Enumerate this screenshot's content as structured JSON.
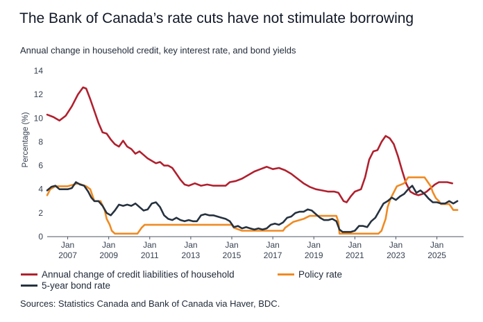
{
  "title": "The Bank of Canada’s rate cuts have not stimulate borrowing",
  "subtitle": "Annual change in household credit, key interest rate, and bond yields",
  "source": "Sources: Statistics Canada and Bank of Canada via Haver, BDC.",
  "colors": {
    "credit": "#b0202e",
    "policy": "#ef8a22",
    "bond": "#26323f",
    "grid": "#e5e7eb",
    "axis": "#4b5563"
  },
  "chart_data": {
    "type": "line",
    "xlabel": "",
    "ylabel": "Percentage (%)",
    "ylim": [
      0,
      14
    ],
    "xlim": [
      2006.0,
      2026.3
    ],
    "yticks": [
      0,
      2,
      4,
      6,
      8,
      10,
      12,
      14
    ],
    "xticks": [
      {
        "x": 2007.0,
        "top": "Jan",
        "bottom": "2007"
      },
      {
        "x": 2009.0,
        "top": "Jan",
        "bottom": "2009"
      },
      {
        "x": 2011.0,
        "top": "Jan",
        "bottom": "2011"
      },
      {
        "x": 2013.0,
        "top": "Jan",
        "bottom": "2013"
      },
      {
        "x": 2015.0,
        "top": "Jan",
        "bottom": "2015"
      },
      {
        "x": 2017.0,
        "top": "Jan",
        "bottom": "2017"
      },
      {
        "x": 2019.0,
        "top": "Jan",
        "bottom": "2019"
      },
      {
        "x": 2021.0,
        "top": "Jan",
        "bottom": "2021"
      },
      {
        "x": 2023.0,
        "top": "Jan",
        "bottom": "2023"
      },
      {
        "x": 2025.0,
        "top": "Jan",
        "bottom": "2025"
      }
    ],
    "legend_position": "bottom",
    "grid": false,
    "series": [
      {
        "name": "Annual change of credit liabilities of household",
        "key": "credit",
        "points": [
          [
            2006.0,
            10.3
          ],
          [
            2006.3,
            10.1
          ],
          [
            2006.6,
            9.8
          ],
          [
            2006.9,
            10.2
          ],
          [
            2007.2,
            11.0
          ],
          [
            2007.5,
            12.0
          ],
          [
            2007.75,
            12.6
          ],
          [
            2007.9,
            12.5
          ],
          [
            2008.1,
            11.6
          ],
          [
            2008.3,
            10.6
          ],
          [
            2008.5,
            9.6
          ],
          [
            2008.7,
            8.8
          ],
          [
            2008.9,
            8.7
          ],
          [
            2009.1,
            8.2
          ],
          [
            2009.3,
            7.8
          ],
          [
            2009.5,
            7.6
          ],
          [
            2009.7,
            8.1
          ],
          [
            2009.9,
            7.6
          ],
          [
            2010.1,
            7.4
          ],
          [
            2010.3,
            7.0
          ],
          [
            2010.5,
            7.2
          ],
          [
            2010.7,
            6.9
          ],
          [
            2010.9,
            6.6
          ],
          [
            2011.1,
            6.4
          ],
          [
            2011.3,
            6.2
          ],
          [
            2011.5,
            6.3
          ],
          [
            2011.7,
            6.0
          ],
          [
            2011.9,
            6.0
          ],
          [
            2012.1,
            5.8
          ],
          [
            2012.3,
            5.3
          ],
          [
            2012.5,
            4.8
          ],
          [
            2012.7,
            4.4
          ],
          [
            2012.9,
            4.3
          ],
          [
            2013.2,
            4.5
          ],
          [
            2013.5,
            4.3
          ],
          [
            2013.8,
            4.4
          ],
          [
            2014.1,
            4.3
          ],
          [
            2014.4,
            4.3
          ],
          [
            2014.7,
            4.3
          ],
          [
            2014.9,
            4.6
          ],
          [
            2015.2,
            4.7
          ],
          [
            2015.5,
            4.9
          ],
          [
            2015.8,
            5.2
          ],
          [
            2016.1,
            5.5
          ],
          [
            2016.4,
            5.7
          ],
          [
            2016.7,
            5.9
          ],
          [
            2017.0,
            5.7
          ],
          [
            2017.3,
            5.8
          ],
          [
            2017.6,
            5.6
          ],
          [
            2017.9,
            5.3
          ],
          [
            2018.2,
            4.9
          ],
          [
            2018.5,
            4.5
          ],
          [
            2018.8,
            4.2
          ],
          [
            2019.1,
            4.0
          ],
          [
            2019.4,
            3.9
          ],
          [
            2019.7,
            3.8
          ],
          [
            2020.0,
            3.8
          ],
          [
            2020.2,
            3.7
          ],
          [
            2020.45,
            3.0
          ],
          [
            2020.6,
            2.9
          ],
          [
            2020.8,
            3.4
          ],
          [
            2021.0,
            3.8
          ],
          [
            2021.3,
            4.0
          ],
          [
            2021.5,
            5.0
          ],
          [
            2021.7,
            6.5
          ],
          [
            2021.9,
            7.2
          ],
          [
            2022.1,
            7.3
          ],
          [
            2022.3,
            8.0
          ],
          [
            2022.5,
            8.5
          ],
          [
            2022.7,
            8.3
          ],
          [
            2022.9,
            7.8
          ],
          [
            2023.1,
            6.8
          ],
          [
            2023.3,
            5.6
          ],
          [
            2023.5,
            4.5
          ],
          [
            2023.7,
            3.8
          ],
          [
            2023.9,
            3.6
          ],
          [
            2024.1,
            3.5
          ],
          [
            2024.3,
            3.6
          ],
          [
            2024.5,
            3.8
          ],
          [
            2024.7,
            4.1
          ],
          [
            2024.9,
            4.4
          ],
          [
            2025.1,
            4.6
          ],
          [
            2025.3,
            4.6
          ],
          [
            2025.5,
            4.6
          ],
          [
            2025.75,
            4.5
          ]
        ]
      },
      {
        "name": "Policy rate",
        "key": "policy",
        "points": [
          [
            2006.0,
            3.5
          ],
          [
            2006.15,
            4.0
          ],
          [
            2006.4,
            4.25
          ],
          [
            2007.0,
            4.25
          ],
          [
            2007.5,
            4.5
          ],
          [
            2007.9,
            4.25
          ],
          [
            2008.1,
            4.0
          ],
          [
            2008.2,
            3.5
          ],
          [
            2008.3,
            3.0
          ],
          [
            2008.6,
            3.0
          ],
          [
            2008.8,
            2.25
          ],
          [
            2008.9,
            1.5
          ],
          [
            2009.05,
            1.0
          ],
          [
            2009.15,
            0.5
          ],
          [
            2009.3,
            0.25
          ],
          [
            2010.4,
            0.25
          ],
          [
            2010.5,
            0.5
          ],
          [
            2010.6,
            0.75
          ],
          [
            2010.75,
            1.0
          ],
          [
            2015.0,
            1.0
          ],
          [
            2015.1,
            0.75
          ],
          [
            2015.5,
            0.5
          ],
          [
            2017.5,
            0.5
          ],
          [
            2017.6,
            0.75
          ],
          [
            2017.8,
            1.0
          ],
          [
            2018.0,
            1.25
          ],
          [
            2018.5,
            1.5
          ],
          [
            2018.8,
            1.75
          ],
          [
            2020.1,
            1.75
          ],
          [
            2020.2,
            1.25
          ],
          [
            2020.25,
            0.25
          ],
          [
            2022.15,
            0.25
          ],
          [
            2022.3,
            0.5
          ],
          [
            2022.4,
            1.0
          ],
          [
            2022.5,
            1.5
          ],
          [
            2022.6,
            2.5
          ],
          [
            2022.75,
            3.25
          ],
          [
            2022.9,
            3.75
          ],
          [
            2023.05,
            4.25
          ],
          [
            2023.4,
            4.5
          ],
          [
            2023.5,
            4.75
          ],
          [
            2023.6,
            5.0
          ],
          [
            2024.4,
            5.0
          ],
          [
            2024.5,
            4.75
          ],
          [
            2024.6,
            4.5
          ],
          [
            2024.7,
            4.25
          ],
          [
            2024.8,
            3.75
          ],
          [
            2024.95,
            3.25
          ],
          [
            2025.1,
            3.0
          ],
          [
            2025.2,
            2.75
          ],
          [
            2025.6,
            2.75
          ],
          [
            2025.7,
            2.5
          ],
          [
            2025.8,
            2.25
          ],
          [
            2026.0,
            2.25
          ]
        ]
      },
      {
        "name": "5-year bond rate",
        "key": "bond",
        "points": [
          [
            2006.0,
            3.9
          ],
          [
            2006.2,
            4.2
          ],
          [
            2006.4,
            4.3
          ],
          [
            2006.6,
            4.0
          ],
          [
            2006.8,
            4.0
          ],
          [
            2007.0,
            4.0
          ],
          [
            2007.2,
            4.1
          ],
          [
            2007.4,
            4.6
          ],
          [
            2007.6,
            4.4
          ],
          [
            2007.8,
            4.3
          ],
          [
            2008.0,
            3.8
          ],
          [
            2008.15,
            3.3
          ],
          [
            2008.3,
            3.0
          ],
          [
            2008.5,
            3.0
          ],
          [
            2008.7,
            2.6
          ],
          [
            2008.9,
            2.0
          ],
          [
            2009.1,
            1.8
          ],
          [
            2009.3,
            2.2
          ],
          [
            2009.5,
            2.7
          ],
          [
            2009.7,
            2.6
          ],
          [
            2009.9,
            2.7
          ],
          [
            2010.1,
            2.6
          ],
          [
            2010.3,
            2.8
          ],
          [
            2010.5,
            2.5
          ],
          [
            2010.7,
            2.2
          ],
          [
            2010.9,
            2.3
          ],
          [
            2011.1,
            2.8
          ],
          [
            2011.3,
            2.9
          ],
          [
            2011.5,
            2.5
          ],
          [
            2011.7,
            1.8
          ],
          [
            2011.9,
            1.5
          ],
          [
            2012.1,
            1.4
          ],
          [
            2012.3,
            1.6
          ],
          [
            2012.5,
            1.4
          ],
          [
            2012.7,
            1.3
          ],
          [
            2012.9,
            1.4
          ],
          [
            2013.1,
            1.3
          ],
          [
            2013.3,
            1.3
          ],
          [
            2013.5,
            1.8
          ],
          [
            2013.7,
            1.9
          ],
          [
            2013.9,
            1.8
          ],
          [
            2014.1,
            1.8
          ],
          [
            2014.3,
            1.7
          ],
          [
            2014.5,
            1.6
          ],
          [
            2014.7,
            1.5
          ],
          [
            2014.9,
            1.3
          ],
          [
            2015.1,
            0.8
          ],
          [
            2015.3,
            0.9
          ],
          [
            2015.5,
            0.7
          ],
          [
            2015.7,
            0.8
          ],
          [
            2015.9,
            0.7
          ],
          [
            2016.1,
            0.6
          ],
          [
            2016.3,
            0.7
          ],
          [
            2016.5,
            0.6
          ],
          [
            2016.7,
            0.7
          ],
          [
            2016.9,
            1.0
          ],
          [
            2017.1,
            1.1
          ],
          [
            2017.3,
            1.0
          ],
          [
            2017.5,
            1.2
          ],
          [
            2017.7,
            1.6
          ],
          [
            2017.9,
            1.7
          ],
          [
            2018.1,
            2.0
          ],
          [
            2018.3,
            2.1
          ],
          [
            2018.5,
            2.1
          ],
          [
            2018.7,
            2.3
          ],
          [
            2018.9,
            2.2
          ],
          [
            2019.1,
            1.9
          ],
          [
            2019.3,
            1.6
          ],
          [
            2019.5,
            1.4
          ],
          [
            2019.7,
            1.4
          ],
          [
            2019.9,
            1.5
          ],
          [
            2020.1,
            1.3
          ],
          [
            2020.25,
            0.6
          ],
          [
            2020.4,
            0.4
          ],
          [
            2020.6,
            0.4
          ],
          [
            2020.8,
            0.4
          ],
          [
            2021.0,
            0.5
          ],
          [
            2021.2,
            0.9
          ],
          [
            2021.4,
            0.9
          ],
          [
            2021.6,
            0.8
          ],
          [
            2021.8,
            1.3
          ],
          [
            2022.0,
            1.6
          ],
          [
            2022.2,
            2.2
          ],
          [
            2022.4,
            2.8
          ],
          [
            2022.6,
            3.0
          ],
          [
            2022.8,
            3.3
          ],
          [
            2023.0,
            3.1
          ],
          [
            2023.2,
            3.4
          ],
          [
            2023.4,
            3.6
          ],
          [
            2023.6,
            4.0
          ],
          [
            2023.8,
            4.3
          ],
          [
            2024.0,
            3.7
          ],
          [
            2024.2,
            3.9
          ],
          [
            2024.4,
            3.6
          ],
          [
            2024.6,
            3.2
          ],
          [
            2024.8,
            2.9
          ],
          [
            2025.0,
            2.9
          ],
          [
            2025.2,
            2.8
          ],
          [
            2025.4,
            2.8
          ],
          [
            2025.6,
            3.0
          ],
          [
            2025.8,
            2.8
          ],
          [
            2026.0,
            3.0
          ]
        ]
      }
    ]
  }
}
